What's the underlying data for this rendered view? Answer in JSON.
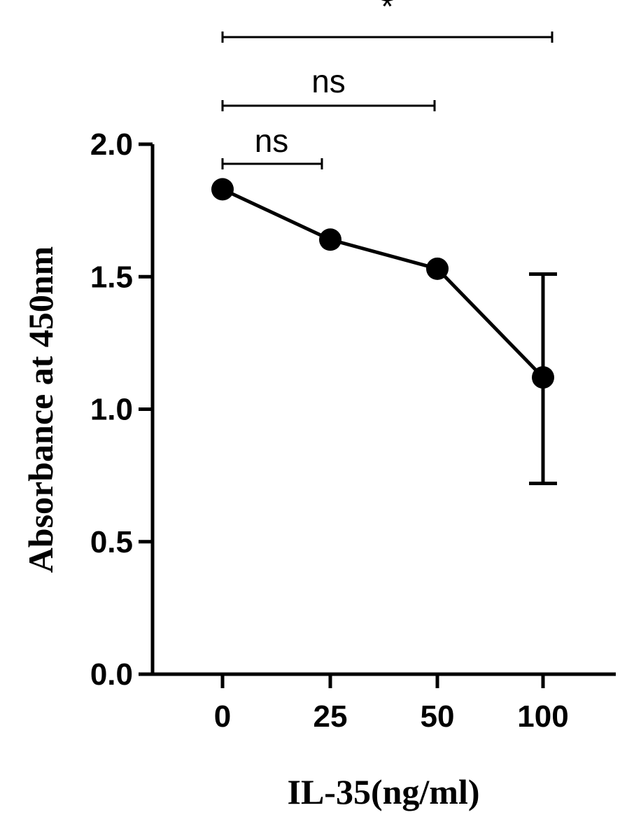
{
  "chart_data": {
    "type": "line",
    "xlabel": "IL-35(ng/ml)",
    "ylabel": "Absorbance at 450nm",
    "categories": [
      "0",
      "25",
      "50",
      "100"
    ],
    "ylim": [
      0,
      2.0
    ],
    "yticks": [
      0.0,
      0.5,
      1.0,
      1.5,
      2.0
    ],
    "ytick_labels": [
      "0.0",
      "0.5",
      "1.0",
      "1.5",
      "2.0"
    ],
    "series": [
      {
        "values": [
          1.83,
          1.64,
          1.53,
          1.12
        ],
        "error_low": [
          1.83,
          1.64,
          1.53,
          0.72
        ],
        "error_high": [
          1.83,
          1.64,
          1.53,
          1.51
        ]
      }
    ],
    "significance": [
      {
        "from": "0",
        "to": "100",
        "label": "*",
        "level": 3
      },
      {
        "from": "0",
        "to": "50",
        "label": "ns",
        "level": 2
      },
      {
        "from": "0",
        "to": "25",
        "label": "ns",
        "level": 1
      }
    ],
    "grid": false,
    "legend": "none"
  }
}
